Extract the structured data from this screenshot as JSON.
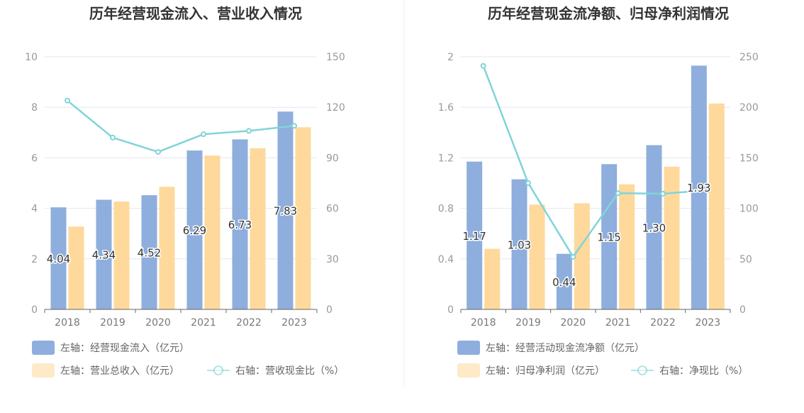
{
  "colors": {
    "cashflow_bar": "#8eaedd",
    "revenue_bar": "#fed99b",
    "ratio_line": "#80d4d8",
    "grid": "#e6e6ef",
    "axis": "#666666",
    "divider": "#eeeeee"
  },
  "chart_data": [
    {
      "type": "bar",
      "title": "历年经营现金流入、营业收入情况",
      "categories": [
        "2018",
        "2019",
        "2020",
        "2021",
        "2022",
        "2023"
      ],
      "y_left": {
        "range": [
          0,
          10
        ],
        "ticks": [
          "0",
          "2",
          "4",
          "6",
          "8",
          "10"
        ]
      },
      "y_right": {
        "range": [
          0,
          150
        ],
        "ticks": [
          "0",
          "30",
          "60",
          "90",
          "120",
          "150"
        ]
      },
      "grid": true,
      "legend_position": "bottom-left",
      "series": [
        {
          "name": "左轴：经营现金流入（亿元）",
          "type": "bar",
          "axis": "left",
          "values": [
            4.04,
            4.34,
            4.52,
            6.29,
            6.73,
            7.83
          ],
          "labels": [
            "4.04",
            "4.34",
            "4.52",
            "6.29",
            "6.73",
            "7.83"
          ]
        },
        {
          "name": "左轴：营业总收入（亿元）",
          "type": "bar",
          "axis": "left",
          "values": [
            3.28,
            4.27,
            4.85,
            6.09,
            6.38,
            7.21
          ]
        },
        {
          "name": "右轴：营收现金比（%）",
          "type": "line",
          "axis": "right",
          "values": [
            124,
            102,
            93.5,
            104,
            106,
            109
          ]
        }
      ]
    },
    {
      "type": "bar",
      "title": "历年经营现金流净额、归母净利润情况",
      "categories": [
        "2018",
        "2019",
        "2020",
        "2021",
        "2022",
        "2023"
      ],
      "y_left": {
        "range": [
          0,
          2
        ],
        "ticks": [
          "0",
          "0.4",
          "0.8",
          "1.2",
          "1.6",
          "2"
        ]
      },
      "y_right": {
        "range": [
          0,
          250
        ],
        "ticks": [
          "0",
          "50",
          "100",
          "150",
          "200",
          "250"
        ]
      },
      "grid": true,
      "legend_position": "bottom-left",
      "series": [
        {
          "name": "左轴：经营活动现金流净额（亿元）",
          "type": "bar",
          "axis": "left",
          "values": [
            1.17,
            1.03,
            0.44,
            1.15,
            1.3,
            1.93
          ],
          "labels": [
            "1.17",
            "1.03",
            "0.44",
            "1.15",
            "1.30",
            "1.93"
          ]
        },
        {
          "name": "左轴：归母净利润（亿元）",
          "type": "bar",
          "axis": "left",
          "values": [
            0.48,
            0.83,
            0.84,
            0.99,
            1.13,
            1.63
          ]
        },
        {
          "name": "右轴：净现比（%）",
          "type": "line",
          "axis": "right",
          "values": [
            241,
            125,
            52,
            115,
            114.5,
            118
          ]
        }
      ]
    }
  ]
}
